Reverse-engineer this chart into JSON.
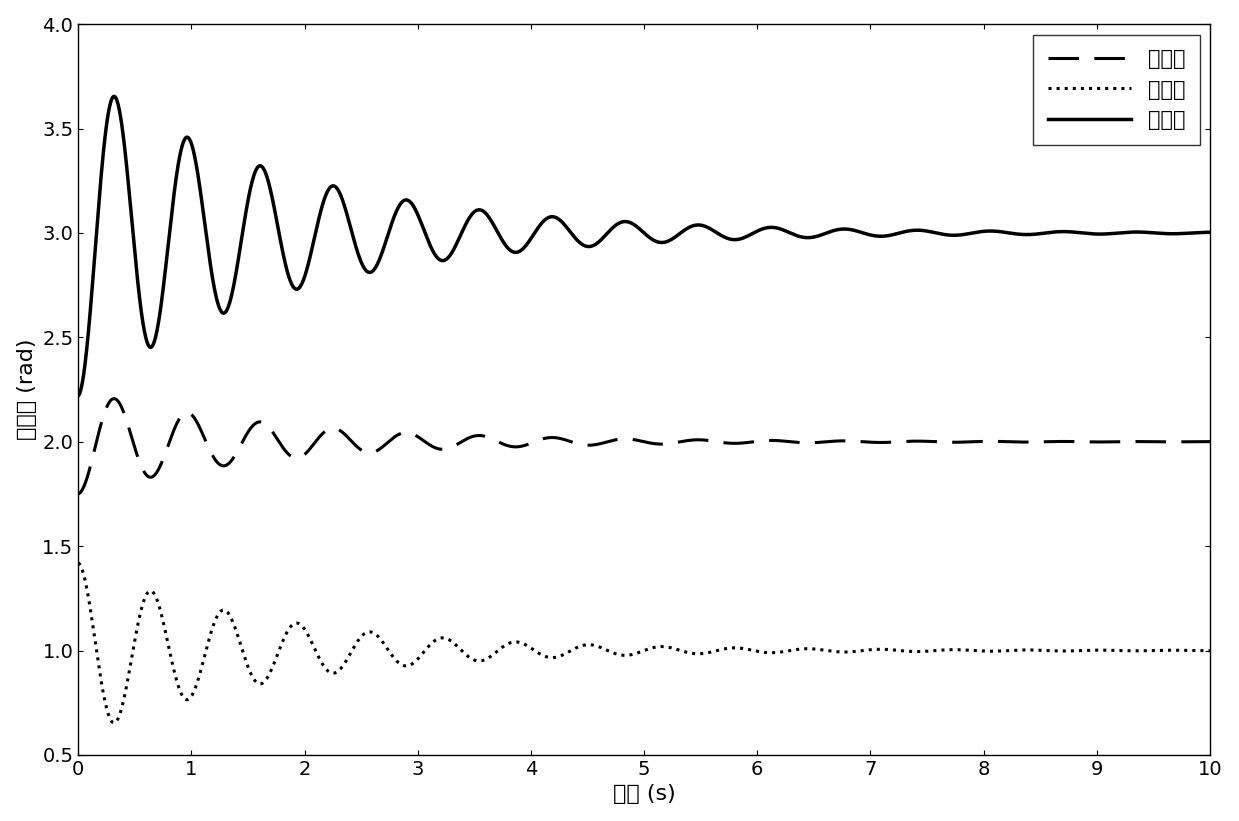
{
  "xlabel": "时间 (s)",
  "ylabel": "姿态角 (rad)",
  "xlim": [
    0,
    10
  ],
  "ylim": [
    0.5,
    4.0
  ],
  "xticks": [
    0,
    1,
    2,
    3,
    4,
    5,
    6,
    7,
    8,
    9,
    10
  ],
  "yticks": [
    0.5,
    1.0,
    1.5,
    2.0,
    2.5,
    3.0,
    3.5,
    4.0
  ],
  "legend_labels": [
    "滚转角",
    "偏航角",
    "俧仰角"
  ],
  "steady_states": [
    2.0,
    1.0,
    3.0
  ],
  "pitch_amp": 0.78,
  "pitch_decay": 0.55,
  "pitch_freq": 1.55,
  "roll_amp": 0.25,
  "roll_decay": 0.6,
  "roll_freq": 1.55,
  "yaw_amp": 0.42,
  "yaw_decay": 0.6,
  "yaw_freq": 1.55,
  "linewidth_solid": 2.5,
  "linewidth_dashed": 2.2,
  "linewidth_dotted": 2.2,
  "font_size_labels": 16,
  "font_size_ticks": 14,
  "font_size_legend": 15
}
